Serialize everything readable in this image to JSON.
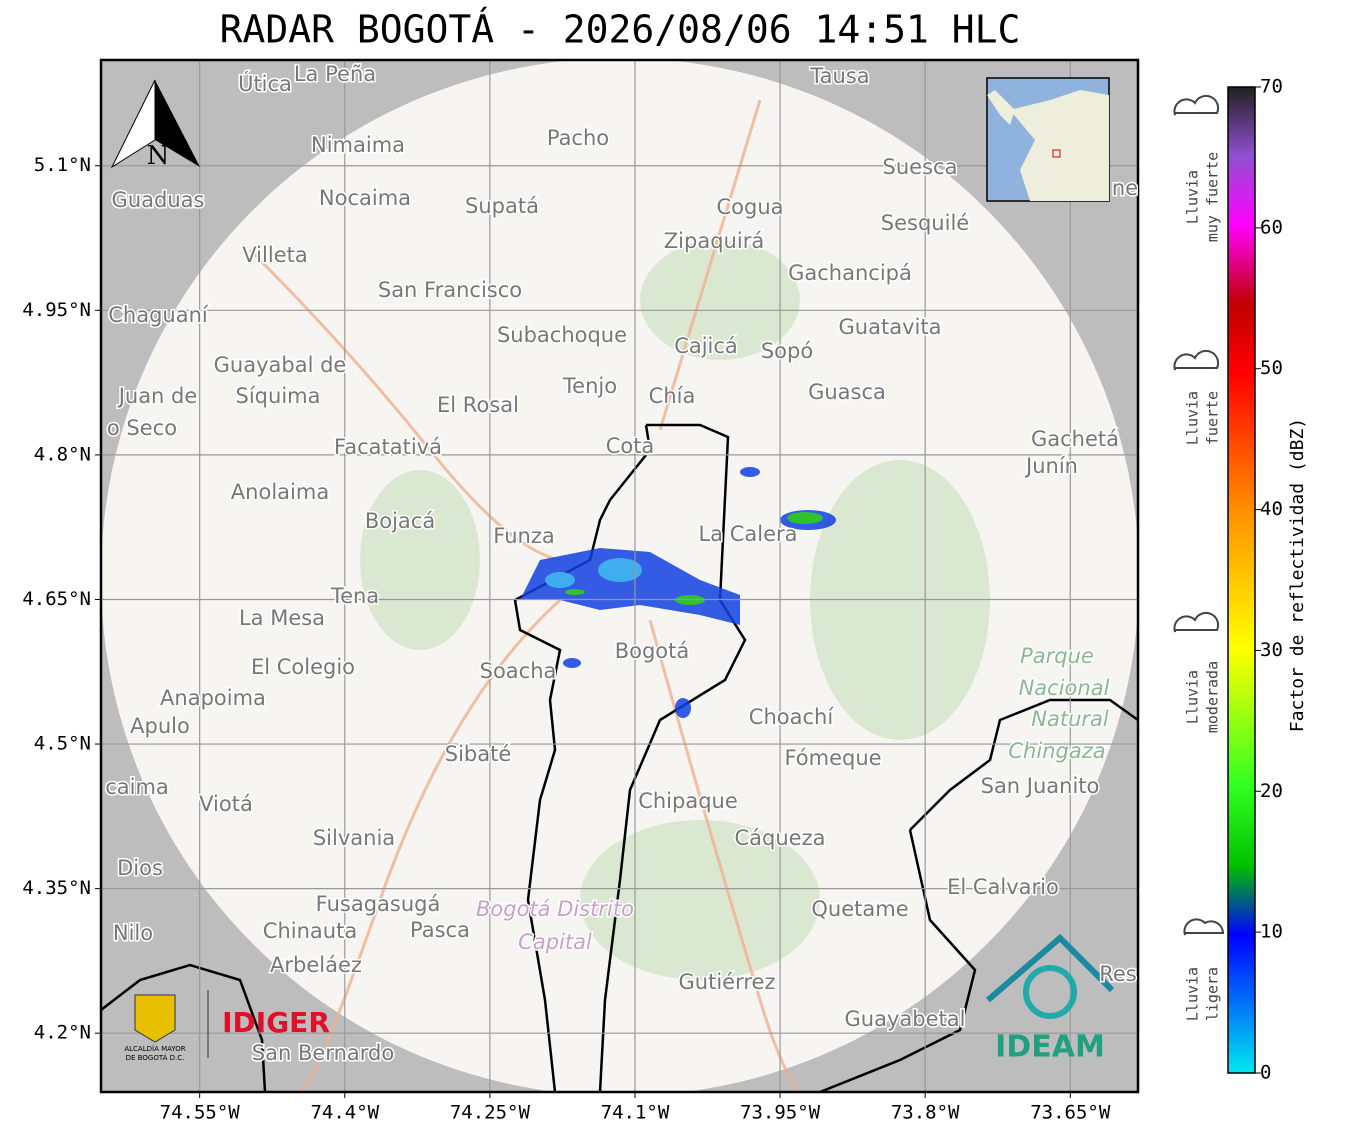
{
  "title": "RADAR BOGOTÁ - 2026/08/06 14:51 HLC",
  "map": {
    "lon_lim": [
      -74.652,
      -73.58
    ],
    "lat_lim": [
      4.139,
      5.2097
    ],
    "xticks": [
      {
        "value": -74.55,
        "label": "74.55°W"
      },
      {
        "value": -74.4,
        "label": "74.4°W"
      },
      {
        "value": -74.25,
        "label": "74.25°W"
      },
      {
        "value": -74.1,
        "label": "74.1°W"
      },
      {
        "value": -73.95,
        "label": "73.95°W"
      },
      {
        "value": -73.8,
        "label": "73.8°W"
      },
      {
        "value": -73.65,
        "label": "73.65°W"
      }
    ],
    "yticks": [
      {
        "value": 5.1,
        "label": "5.1°N"
      },
      {
        "value": 4.95,
        "label": "4.95°N"
      },
      {
        "value": 4.8,
        "label": "4.8°N"
      },
      {
        "value": 4.65,
        "label": "4.65°N"
      },
      {
        "value": 4.5,
        "label": "4.5°N"
      },
      {
        "value": 4.35,
        "label": "4.35°N"
      },
      {
        "value": 4.2,
        "label": "4.2°N"
      }
    ],
    "north": "N",
    "places": [
      "Útica",
      "La Peña",
      "Tausa",
      "Pacho",
      "Nimaima",
      "Guaduas",
      "Nocaima",
      "Supatá",
      "Cogua",
      "Suesca",
      "Sesquilé",
      "Villeta",
      "Zipaquirá",
      "Gachancipá",
      "San Francisco",
      "Chaguaní",
      "Guatavita",
      "Subachoque",
      "Cajicá",
      "Sopó",
      "Guayabal de",
      "Síquima",
      "Juan de",
      "Tenjo",
      "Chía",
      "Guasca",
      "El Rosal",
      "o Seco",
      "Facatativá",
      "Cota",
      "Gachetá",
      "Junín",
      "Anolaima",
      "Bojacá",
      "Funza",
      "La Calera",
      "Tena",
      "La Mesa",
      "El Colegio",
      "Soacha",
      "Bogotá",
      "Anapoima",
      "Apulo",
      "Choachí",
      "Sibaté",
      "Fómeque",
      "San Juanito",
      "caima",
      "Viotá",
      "Chipaque",
      "Silvania",
      "Cáqueza",
      "Dios",
      "El Calvario",
      "Fusagasugá",
      "Quetame",
      "Nilo",
      "Chinauta",
      "Pasca",
      "Arbeláez",
      "Gutiérrez",
      "Res",
      "Guayabetal",
      "San Bernardo",
      "ne"
    ],
    "park": [
      "Parque",
      "Nacional",
      "Natural",
      "Chingaza"
    ],
    "district": [
      "Bogotá Distrito",
      "Capital"
    ],
    "logos": {
      "idiger": "IDIGER",
      "ideam": "IDEAM",
      "alcaldia_1": "ALCALDÍA MAYOR",
      "alcaldia_2": "DE BOGOTÁ D.C."
    }
  },
  "colorbar": {
    "label": "Factor de reflectividad (dBZ)",
    "lim": [
      0,
      70
    ],
    "ticks": [
      0,
      10,
      20,
      30,
      40,
      50,
      60,
      70
    ],
    "levels": [
      [
        "Lluvia",
        "muy fuerte"
      ],
      [
        "Lluvia",
        "fuerte"
      ],
      [
        "Lluvia",
        "moderada"
      ],
      [
        "Lluvia",
        "ligera"
      ]
    ]
  }
}
